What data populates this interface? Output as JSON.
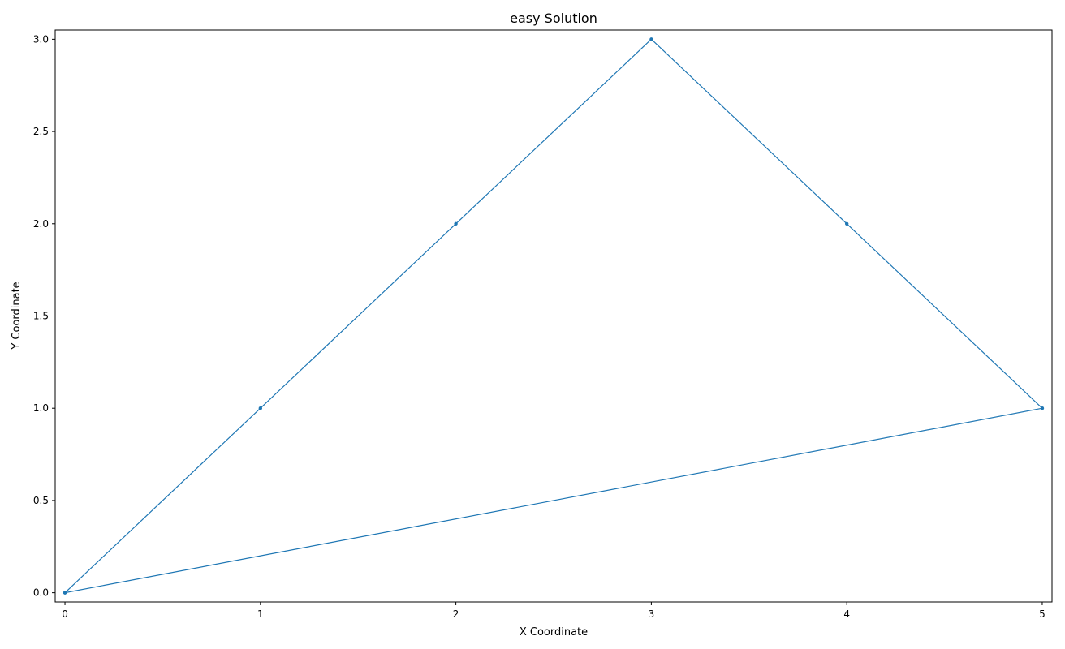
{
  "chart_data": {
    "type": "line",
    "title": "easy Solution",
    "xlabel": "X Coordinate",
    "ylabel": "Y Coordinate",
    "xlim": [
      -0.05,
      5.05
    ],
    "ylim": [
      -0.05,
      3.05
    ],
    "xticks": [
      0,
      1,
      2,
      3,
      4,
      5
    ],
    "xtick_labels": [
      "0",
      "1",
      "2",
      "3",
      "4",
      "5"
    ],
    "yticks": [
      0.0,
      0.5,
      1.0,
      1.5,
      2.0,
      2.5,
      3.0
    ],
    "ytick_labels": [
      "0.0",
      "0.5",
      "1.0",
      "1.5",
      "2.0",
      "2.5",
      "3.0"
    ],
    "grid": false,
    "series": [
      {
        "color": "#1f77b4",
        "x": [
          0,
          1,
          2,
          3,
          4,
          5,
          0
        ],
        "y": [
          0,
          1,
          2,
          3,
          2,
          1,
          0
        ]
      }
    ]
  }
}
